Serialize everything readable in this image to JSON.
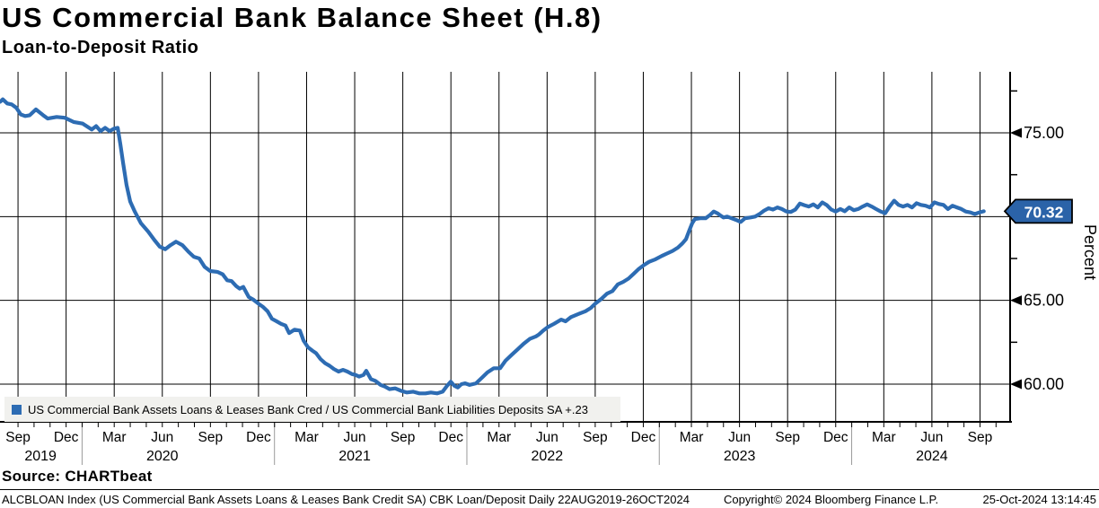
{
  "header": {
    "title": "US Commercial Bank Balance Sheet (H.8)",
    "subtitle": "Loan-to-Deposit Ratio"
  },
  "legend": {
    "swatch_color": "#2d6cb3",
    "label": "US Commercial Bank Assets Loans & Leases Bank Cred / US Commercial Bank Liabilities Deposits SA +.23"
  },
  "source_line": "Source: CHARTbeat",
  "footer": {
    "left": "ALCBLOAN Index (US Commercial Bank Assets Loans & Leases Bank Credit SA) CBK Loan/Deposit  Daily 22AUG2019-26OCT2024",
    "center": "Copyright© 2024 Bloomberg Finance L.P.",
    "right": "25-Oct-2024 13:14:45"
  },
  "chart_data": {
    "type": "line",
    "title": "US Commercial Bank Balance Sheet (H.8) — Loan-to-Deposit Ratio",
    "xlabel": "",
    "ylabel": "Percent",
    "xlim_decimal_years": [
      2019.574,
      2024.825
    ],
    "ylim": [
      57.75,
      78.2
    ],
    "grid": "both",
    "y_gridline_values": [
      75,
      70,
      65,
      60
    ],
    "y_axis": {
      "title": "Percent",
      "major_ticks": [
        {
          "value": 75,
          "label": "75.00"
        },
        {
          "value": 65,
          "label": "65.00"
        },
        {
          "value": 60,
          "label": "60.00"
        }
      ],
      "minor_tick_values": [
        77.5,
        72.5,
        67.5,
        62.5
      ],
      "last_value_badge": {
        "value": 70.32,
        "label": "70.32",
        "bg": "#2b63a8",
        "border": "#000000",
        "text_color": "#ffffff"
      }
    },
    "x_axis": {
      "quarter_ticks": [
        {
          "label": "Sep",
          "t": 2019.667
        },
        {
          "label": "Dec",
          "t": 2019.917
        },
        {
          "label": "Mar",
          "t": 2020.167
        },
        {
          "label": "Jun",
          "t": 2020.417
        },
        {
          "label": "Sep",
          "t": 2020.667
        },
        {
          "label": "Dec",
          "t": 2020.917
        },
        {
          "label": "Mar",
          "t": 2021.167
        },
        {
          "label": "Jun",
          "t": 2021.417
        },
        {
          "label": "Sep",
          "t": 2021.667
        },
        {
          "label": "Dec",
          "t": 2021.917
        },
        {
          "label": "Mar",
          "t": 2022.167
        },
        {
          "label": "Jun",
          "t": 2022.417
        },
        {
          "label": "Sep",
          "t": 2022.667
        },
        {
          "label": "Dec",
          "t": 2022.917
        },
        {
          "label": "Mar",
          "t": 2023.167
        },
        {
          "label": "Jun",
          "t": 2023.417
        },
        {
          "label": "Sep",
          "t": 2023.667
        },
        {
          "label": "Dec",
          "t": 2023.917
        },
        {
          "label": "Mar",
          "t": 2024.167
        },
        {
          "label": "Jun",
          "t": 2024.417
        },
        {
          "label": "Sep",
          "t": 2024.667
        }
      ],
      "year_labels": [
        {
          "label": "2019",
          "t": 2019.784
        },
        {
          "label": "2020",
          "t": 2020.417
        },
        {
          "label": "2021",
          "t": 2021.417
        },
        {
          "label": "2022",
          "t": 2022.417
        },
        {
          "label": "2023",
          "t": 2023.417
        },
        {
          "label": "2024",
          "t": 2024.417
        }
      ],
      "year_separators_t": [
        2020.0,
        2021.0,
        2022.0,
        2023.0,
        2024.0
      ],
      "month_tick_start_t": 2019.667,
      "month_tick_end_t": 2024.75
    },
    "series": [
      {
        "name": "US Commercial Bank Assets Loans & Leases Bank Cred / US Commercial Bank Liabilities Deposits SA",
        "color": "#2d6cb3",
        "points": [
          [
            2019.574,
            76.85
          ],
          [
            2019.588,
            77.0
          ],
          [
            2019.611,
            76.75
          ],
          [
            2019.634,
            76.7
          ],
          [
            2019.658,
            76.5
          ],
          [
            2019.681,
            76.1
          ],
          [
            2019.704,
            76.0
          ],
          [
            2019.728,
            76.05
          ],
          [
            2019.76,
            76.4
          ],
          [
            2019.798,
            76.05
          ],
          [
            2019.821,
            75.85
          ],
          [
            2019.868,
            75.95
          ],
          [
            2019.91,
            75.9
          ],
          [
            2019.956,
            75.65
          ],
          [
            2020.003,
            75.55
          ],
          [
            2020.05,
            75.2
          ],
          [
            2020.073,
            75.4
          ],
          [
            2020.096,
            75.1
          ],
          [
            2020.12,
            75.3
          ],
          [
            2020.143,
            75.1
          ],
          [
            2020.166,
            75.25
          ],
          [
            2020.185,
            75.3
          ],
          [
            2020.199,
            74.3
          ],
          [
            2020.213,
            73.2
          ],
          [
            2020.231,
            71.9
          ],
          [
            2020.25,
            70.9
          ],
          [
            2020.274,
            70.3
          ],
          [
            2020.306,
            69.6
          ],
          [
            2020.344,
            69.1
          ],
          [
            2020.376,
            68.6
          ],
          [
            2020.404,
            68.2
          ],
          [
            2020.432,
            68.05
          ],
          [
            2020.46,
            68.3
          ],
          [
            2020.488,
            68.5
          ],
          [
            2020.521,
            68.3
          ],
          [
            2020.553,
            67.9
          ],
          [
            2020.581,
            67.6
          ],
          [
            2020.609,
            67.5
          ],
          [
            2020.637,
            67.0
          ],
          [
            2020.666,
            66.75
          ],
          [
            2020.703,
            66.7
          ],
          [
            2020.731,
            66.55
          ],
          [
            2020.754,
            66.2
          ],
          [
            2020.777,
            66.15
          ],
          [
            2020.801,
            65.85
          ],
          [
            2020.819,
            65.7
          ],
          [
            2020.838,
            65.8
          ],
          [
            2020.866,
            65.2
          ],
          [
            2020.889,
            65.05
          ],
          [
            2020.917,
            64.8
          ],
          [
            2020.941,
            64.6
          ],
          [
            2020.964,
            64.35
          ],
          [
            2020.987,
            63.9
          ],
          [
            2021.011,
            63.75
          ],
          [
            2021.034,
            63.6
          ],
          [
            2021.057,
            63.5
          ],
          [
            2021.076,
            63.05
          ],
          [
            2021.104,
            63.25
          ],
          [
            2021.132,
            63.2
          ],
          [
            2021.151,
            62.6
          ],
          [
            2021.174,
            62.2
          ],
          [
            2021.197,
            62.0
          ],
          [
            2021.216,
            61.85
          ],
          [
            2021.239,
            61.5
          ],
          [
            2021.263,
            61.25
          ],
          [
            2021.286,
            61.1
          ],
          [
            2021.309,
            60.9
          ],
          [
            2021.333,
            60.75
          ],
          [
            2021.356,
            60.85
          ],
          [
            2021.379,
            60.75
          ],
          [
            2021.403,
            60.6
          ],
          [
            2021.421,
            60.55
          ],
          [
            2021.44,
            60.45
          ],
          [
            2021.463,
            60.55
          ],
          [
            2021.477,
            60.8
          ],
          [
            2021.501,
            60.3
          ],
          [
            2021.524,
            60.2
          ],
          [
            2021.552,
            59.95
          ],
          [
            2021.575,
            59.85
          ],
          [
            2021.598,
            59.7
          ],
          [
            2021.627,
            59.75
          ],
          [
            2021.659,
            59.6
          ],
          [
            2021.687,
            59.5
          ],
          [
            2021.72,
            59.55
          ],
          [
            2021.753,
            59.45
          ],
          [
            2021.785,
            59.45
          ],
          [
            2021.813,
            59.5
          ],
          [
            2021.846,
            59.45
          ],
          [
            2021.874,
            59.55
          ],
          [
            2021.897,
            59.9
          ],
          [
            2021.916,
            60.15
          ],
          [
            2021.935,
            59.9
          ],
          [
            2021.953,
            59.8
          ],
          [
            2021.972,
            60.0
          ],
          [
            2021.991,
            60.05
          ],
          [
            2022.014,
            59.95
          ],
          [
            2022.047,
            60.05
          ],
          [
            2022.08,
            60.4
          ],
          [
            2022.107,
            60.7
          ],
          [
            2022.14,
            60.95
          ],
          [
            2022.173,
            60.95
          ],
          [
            2022.201,
            61.4
          ],
          [
            2022.233,
            61.75
          ],
          [
            2022.266,
            62.1
          ],
          [
            2022.294,
            62.4
          ],
          [
            2022.327,
            62.7
          ],
          [
            2022.359,
            62.85
          ],
          [
            2022.373,
            62.95
          ],
          [
            2022.397,
            63.2
          ],
          [
            2022.42,
            63.4
          ],
          [
            2022.453,
            63.6
          ],
          [
            2022.49,
            63.85
          ],
          [
            2022.513,
            63.75
          ],
          [
            2022.541,
            64.0
          ],
          [
            2022.583,
            64.2
          ],
          [
            2022.616,
            64.35
          ],
          [
            2022.644,
            64.55
          ],
          [
            2022.667,
            64.8
          ],
          [
            2022.7,
            65.1
          ],
          [
            2022.728,
            65.4
          ],
          [
            2022.756,
            65.55
          ],
          [
            2022.784,
            65.95
          ],
          [
            2022.812,
            66.1
          ],
          [
            2022.84,
            66.3
          ],
          [
            2022.868,
            66.6
          ],
          [
            2022.891,
            66.85
          ],
          [
            2022.919,
            67.1
          ],
          [
            2022.947,
            67.3
          ],
          [
            2022.98,
            67.45
          ],
          [
            2023.013,
            67.65
          ],
          [
            2023.041,
            67.8
          ],
          [
            2023.069,
            67.95
          ],
          [
            2023.097,
            68.15
          ],
          [
            2023.12,
            68.4
          ],
          [
            2023.139,
            68.65
          ],
          [
            2023.157,
            69.2
          ],
          [
            2023.171,
            69.6
          ],
          [
            2023.185,
            69.85
          ],
          [
            2023.213,
            69.9
          ],
          [
            2023.241,
            69.9
          ],
          [
            2023.264,
            70.1
          ],
          [
            2023.283,
            70.3
          ],
          [
            2023.302,
            70.2
          ],
          [
            2023.32,
            70.05
          ],
          [
            2023.334,
            69.95
          ],
          [
            2023.353,
            70.0
          ],
          [
            2023.376,
            69.9
          ],
          [
            2023.4,
            69.8
          ],
          [
            2023.423,
            69.68
          ],
          [
            2023.446,
            69.9
          ],
          [
            2023.474,
            69.95
          ],
          [
            2023.498,
            70.0
          ],
          [
            2023.521,
            70.15
          ],
          [
            2023.544,
            70.35
          ],
          [
            2023.568,
            70.5
          ],
          [
            2023.591,
            70.42
          ],
          [
            2023.614,
            70.55
          ],
          [
            2023.637,
            70.45
          ],
          [
            2023.661,
            70.3
          ],
          [
            2023.684,
            70.28
          ],
          [
            2023.707,
            70.42
          ],
          [
            2023.731,
            70.78
          ],
          [
            2023.754,
            70.68
          ],
          [
            2023.777,
            70.6
          ],
          [
            2023.801,
            70.73
          ],
          [
            2023.824,
            70.55
          ],
          [
            2023.847,
            70.85
          ],
          [
            2023.871,
            70.68
          ],
          [
            2023.894,
            70.42
          ],
          [
            2023.917,
            70.3
          ],
          [
            2023.941,
            70.45
          ],
          [
            2023.964,
            70.32
          ],
          [
            2023.987,
            70.55
          ],
          [
            2024.011,
            70.38
          ],
          [
            2024.034,
            70.45
          ],
          [
            2024.057,
            70.6
          ],
          [
            2024.081,
            70.73
          ],
          [
            2024.104,
            70.6
          ],
          [
            2024.127,
            70.45
          ],
          [
            2024.151,
            70.3
          ],
          [
            2024.174,
            70.2
          ],
          [
            2024.197,
            70.6
          ],
          [
            2024.221,
            70.95
          ],
          [
            2024.244,
            70.7
          ],
          [
            2024.267,
            70.6
          ],
          [
            2024.29,
            70.7
          ],
          [
            2024.314,
            70.55
          ],
          [
            2024.337,
            70.8
          ],
          [
            2024.36,
            70.7
          ],
          [
            2024.384,
            70.65
          ],
          [
            2024.407,
            70.55
          ],
          [
            2024.43,
            70.85
          ],
          [
            2024.454,
            70.75
          ],
          [
            2024.477,
            70.7
          ],
          [
            2024.5,
            70.45
          ],
          [
            2024.524,
            70.65
          ],
          [
            2024.547,
            70.55
          ],
          [
            2024.57,
            70.45
          ],
          [
            2024.593,
            70.3
          ],
          [
            2024.617,
            70.25
          ],
          [
            2024.64,
            70.15
          ],
          [
            2024.663,
            70.25
          ],
          [
            2024.687,
            70.32
          ]
        ]
      }
    ],
    "legend_position": "bottom-left",
    "last_value": 70.32
  }
}
